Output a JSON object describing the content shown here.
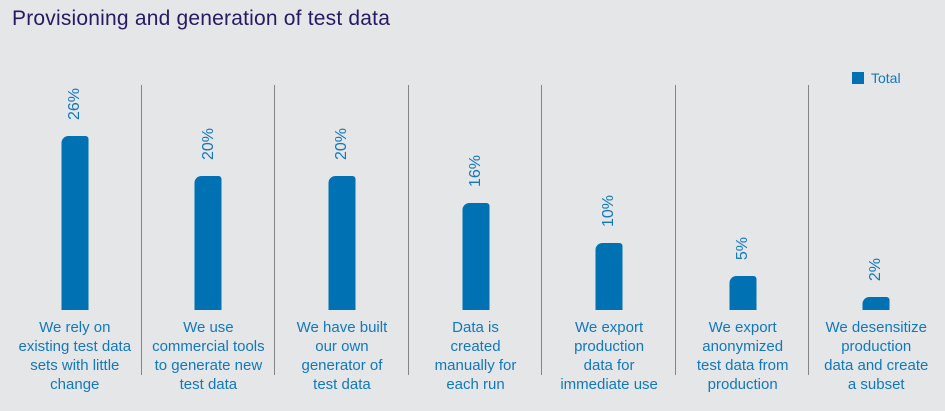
{
  "page": {
    "background": "#e5e6e8"
  },
  "header": {
    "title": "Provisioning and generation of test data",
    "title_color": "#281964"
  },
  "legend": {
    "label": "Total",
    "swatch_color": "#0071b2",
    "position": "top-right"
  },
  "chart_data": {
    "type": "bar",
    "title": "Provisioning and generation of test data",
    "series_name": "Total",
    "categories": [
      "We rely on\nexisting test data\nsets with little\nchange",
      "We use\ncommercial tools\nto generate new\ntest data",
      "We have built\nour own\ngenerator of\ntest data",
      "Data is\ncreated\nmanually for\neach run",
      "We export\nproduction\ndata for\nimmediate use",
      "We export\nanonymized\ntest data from\nproduction",
      "We desensitize\nproduction\ndata and create\na subset"
    ],
    "values": [
      26,
      20,
      20,
      16,
      10,
      5,
      2
    ],
    "value_labels": [
      "26%",
      "20%",
      "20%",
      "16%",
      "10%",
      "5%",
      "2%"
    ],
    "value_label_rotation": -90,
    "ylim": [
      0,
      28
    ],
    "grid": "off",
    "xlabel": "",
    "ylabel": "",
    "legend_position": "top-right",
    "bar_color": "#0071b2",
    "label_color": "#1278bd",
    "separator_color": "#848484",
    "background_color": "#e5e6e8"
  }
}
